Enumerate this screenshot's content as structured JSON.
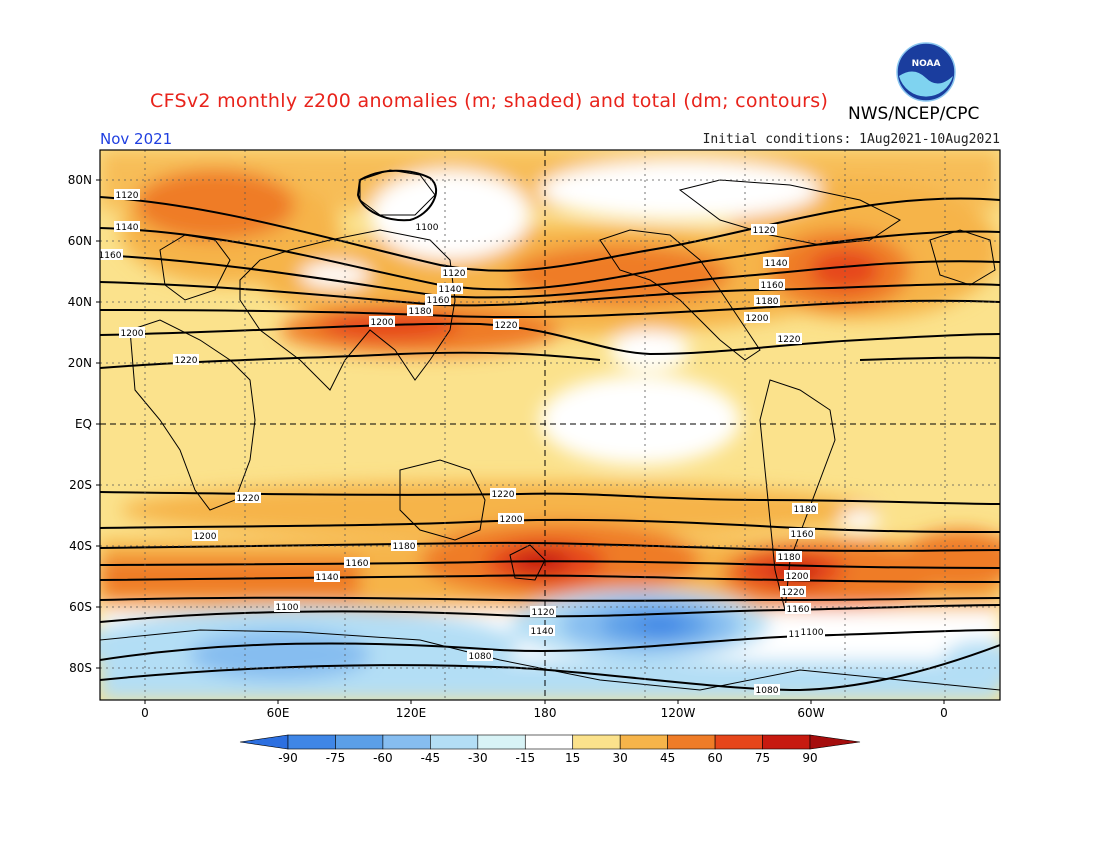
{
  "header": {
    "title": "CFSv2 monthly z200 anomalies (m; shaded) and total (dm; contours)",
    "agency": "NWS/NCEP/CPC",
    "month": "Nov 2021",
    "initial_conditions": "Initial conditions: 1Aug2021-10Aug2021",
    "logo_text": "NOAA"
  },
  "map": {
    "lat_ticks": [
      "80N",
      "60N",
      "40N",
      "20N",
      "EQ",
      "20S",
      "40S",
      "60S",
      "80S"
    ],
    "lon_ticks": [
      "0",
      "60E",
      "120E",
      "180",
      "120W",
      "60W",
      "0"
    ],
    "colors": {
      "ocean_bg": "#fbe28c",
      "coast": "#000000",
      "contour": "#000000"
    }
  },
  "colorbar": {
    "labels": [
      "-90",
      "-75",
      "-60",
      "-45",
      "-30",
      "-15",
      "15",
      "30",
      "45",
      "60",
      "75",
      "90"
    ],
    "colors": [
      "#2c6fe0",
      "#3f86e6",
      "#5b9fe8",
      "#86bdf0",
      "#b3def5",
      "#d8f3f6",
      "#ffffff",
      "#fbe28c",
      "#f6b44a",
      "#ef7c27",
      "#e6461b",
      "#c71a10",
      "#a50d0d"
    ]
  },
  "contours": {
    "labels": [
      "1120",
      "1140",
      "1160",
      "1200",
      "1220",
      "1100",
      "1120",
      "1140",
      "1160",
      "1180",
      "1200",
      "1220",
      "1120",
      "1140",
      "1160",
      "1180",
      "1200",
      "1220",
      "1220",
      "1200",
      "1180",
      "1160",
      "1140",
      "1100",
      "1080",
      "1220",
      "1200",
      "1180",
      "1160",
      "1120",
      "1180",
      "1200",
      "1220",
      "1140",
      "1160",
      "1120",
      "1100",
      "1080"
    ]
  }
}
